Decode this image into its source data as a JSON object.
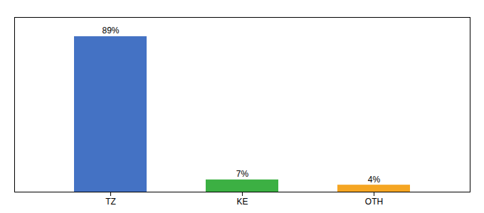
{
  "chart_data": {
    "type": "bar",
    "categories": [
      "TZ",
      "KE",
      "OTH"
    ],
    "values": [
      89,
      7,
      4
    ],
    "value_labels": [
      "89%",
      "7%",
      "4%"
    ],
    "colors": [
      "#4472c4",
      "#3cb043",
      "#f5a623"
    ],
    "ylim": [
      0,
      100
    ],
    "yticks": [],
    "tick_labels": "x",
    "data_labels": true
  }
}
